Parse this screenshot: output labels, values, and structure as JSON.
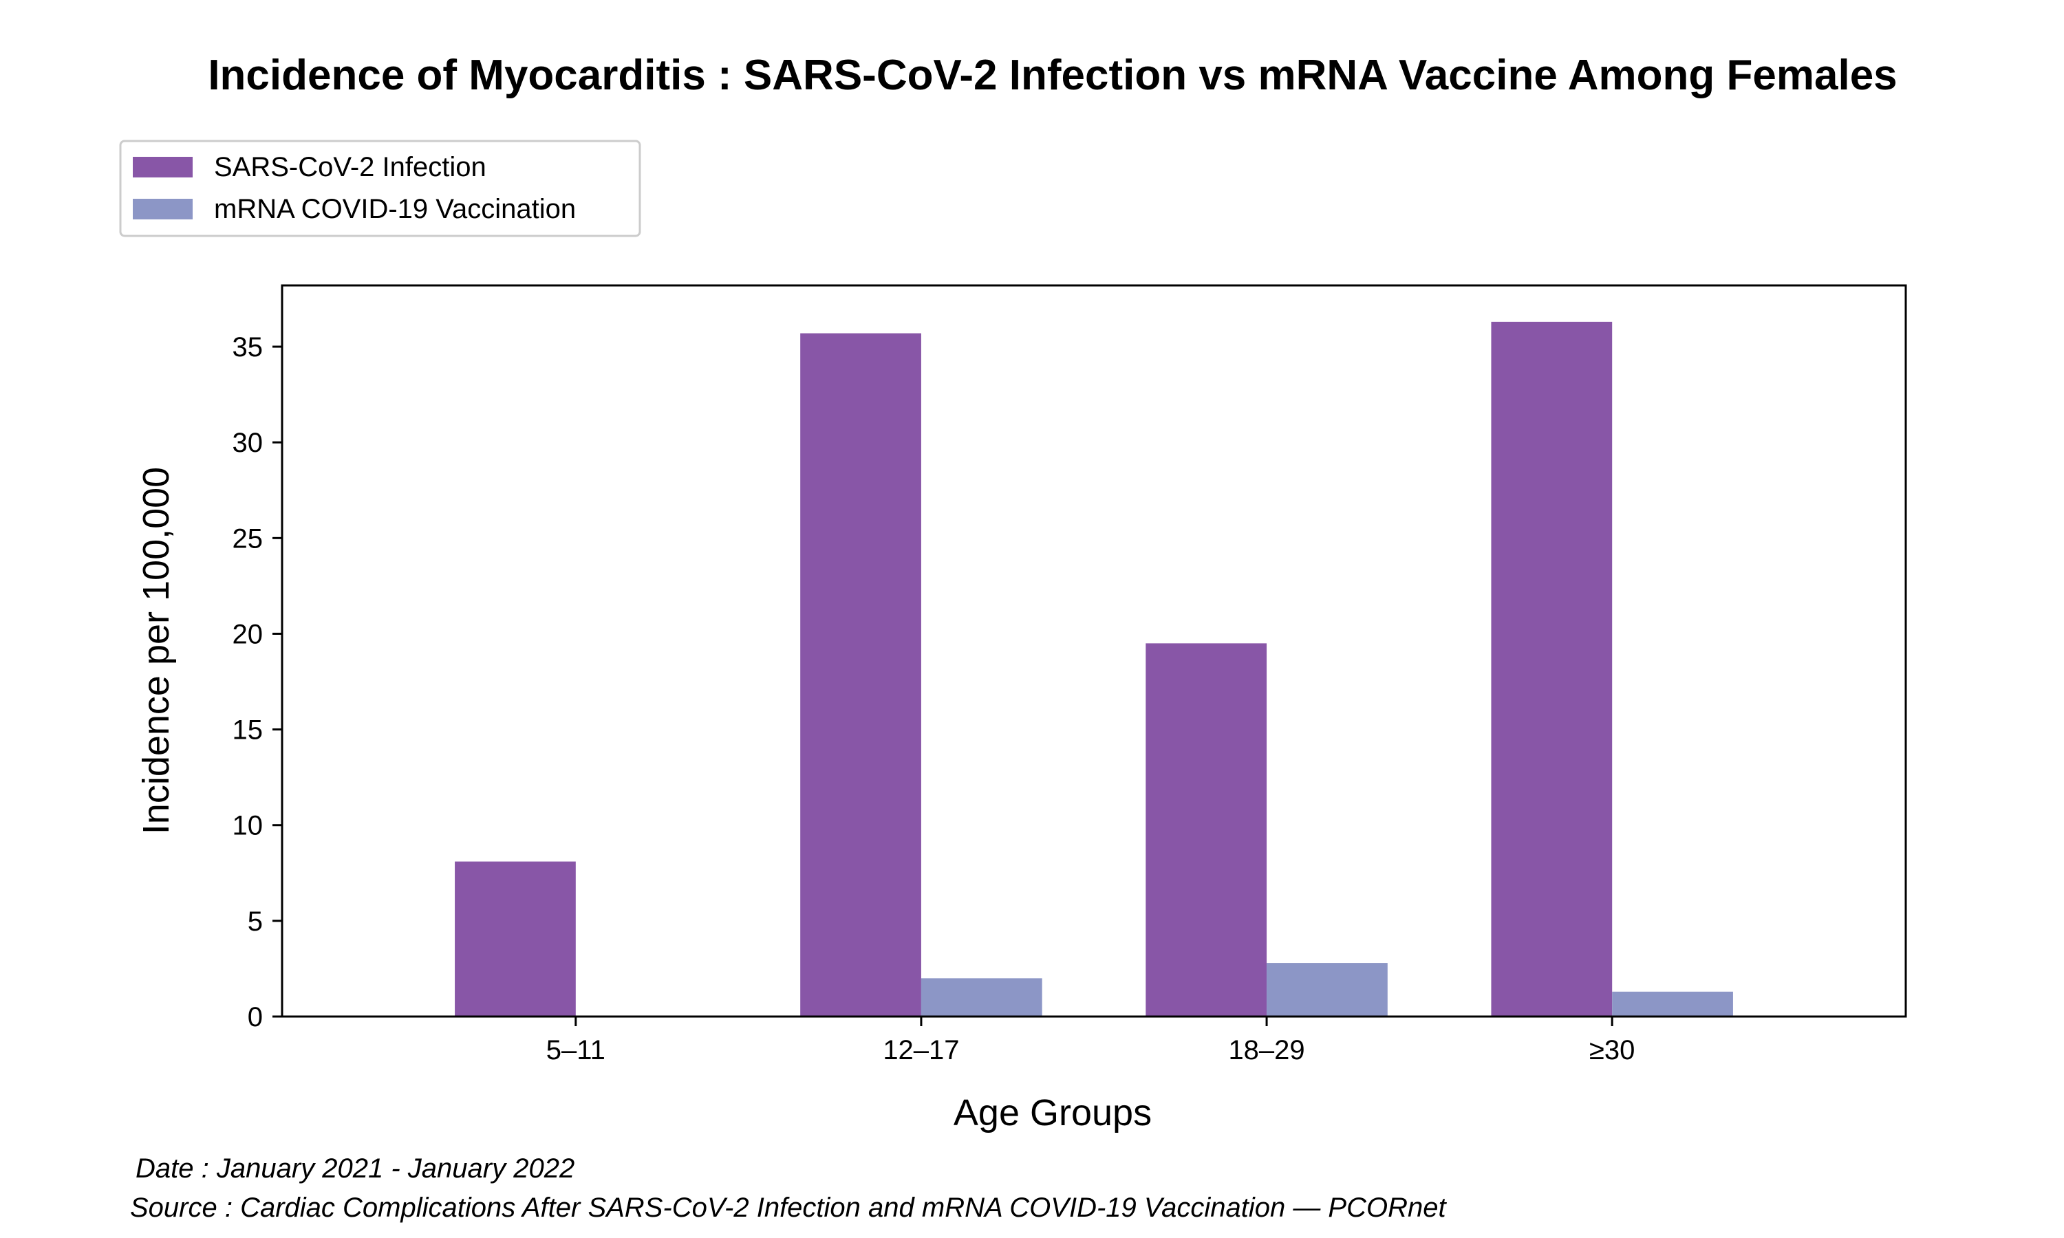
{
  "chart_data": {
    "type": "bar",
    "title": "Incidence of Myocarditis : SARS-CoV-2 Infection vs mRNA Vaccine Among Females",
    "xlabel": "Age Groups",
    "ylabel": "Incidence per 100,000",
    "categories": [
      "5–11",
      "12–17",
      "18–29",
      "≥30"
    ],
    "series": [
      {
        "name": "SARS-CoV-2 Infection",
        "values": [
          8.1,
          35.7,
          19.5,
          36.3
        ],
        "color": "#8856a7"
      },
      {
        "name": "mRNA COVID-19 Vaccination",
        "values": [
          0,
          2.0,
          2.8,
          1.3
        ],
        "color": "#8c96c6"
      }
    ],
    "ylim": [
      0,
      38.2
    ],
    "yticks": [
      0,
      5,
      10,
      15,
      20,
      25,
      30,
      35
    ],
    "grid": false,
    "legend_position": "top-left"
  },
  "footer": {
    "date": "Date : January 2021 - January 2022",
    "source": "Source : Cardiac Complications After SARS-CoV-2 Infection and mRNA COVID-19 Vaccination — PCORnet"
  }
}
